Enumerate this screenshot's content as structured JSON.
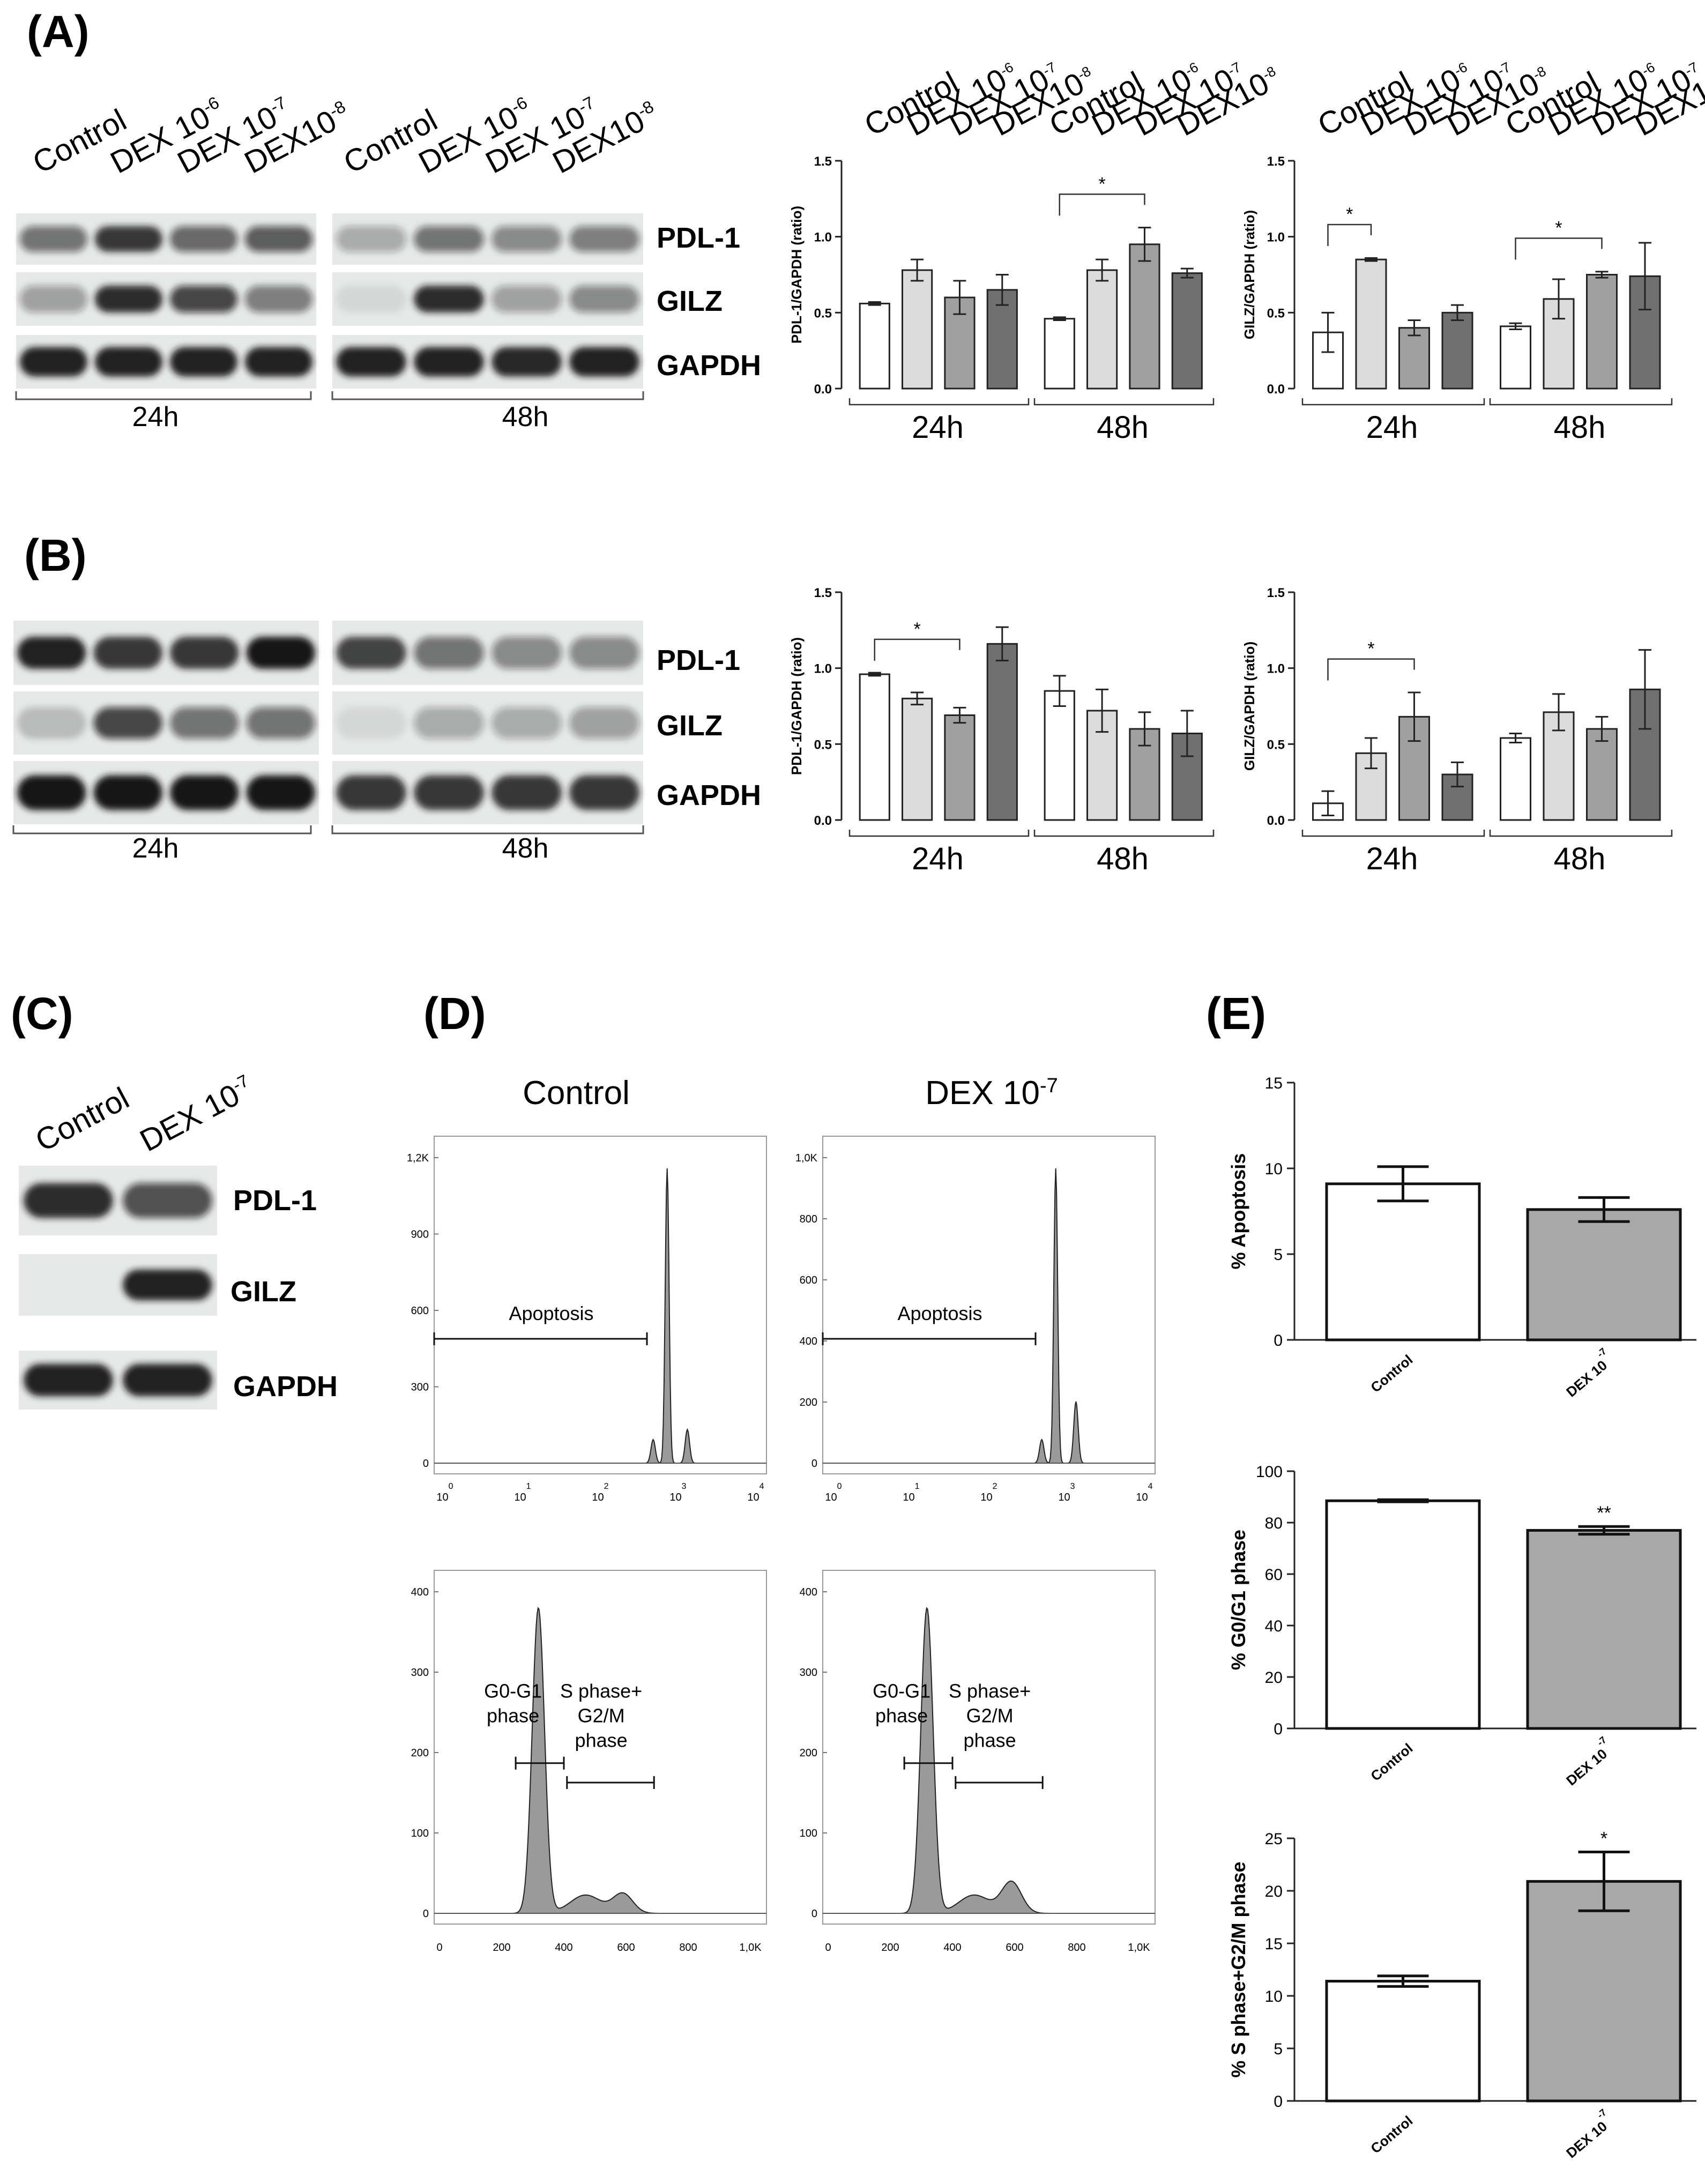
{
  "panels": {
    "A": "(A)",
    "B": "(B)",
    "C": "(C)",
    "D": "(D)",
    "E": "(E)"
  },
  "western": {
    "lanes": [
      {
        "base": "Control",
        "exp": ""
      },
      {
        "base": "DEX 10",
        "exp": "-6"
      },
      {
        "base": "DEX 10",
        "exp": "-7"
      },
      {
        "base": "DEX10",
        "exp": "-8"
      }
    ],
    "lanes_c": [
      {
        "base": "Control",
        "exp": ""
      },
      {
        "base": "DEX 10",
        "exp": "-7"
      }
    ],
    "proteins": [
      "PDL-1",
      "GILZ",
      "GAPDH"
    ],
    "times": [
      "24h",
      "48h"
    ]
  },
  "chart_data": [
    {
      "id": "A-PDL1",
      "type": "bar",
      "ylabel": "PDL-1/GAPDH (ratio)",
      "ylim": [
        0,
        1.5
      ],
      "yticks": [
        "0.0",
        "0.5",
        "1.0",
        "1.5"
      ],
      "groups": [
        "24h",
        "48h"
      ],
      "categories": [
        "Control",
        "DEX 10-6",
        "DEX 10-7",
        "DEX10-8"
      ],
      "values": [
        [
          0.56,
          0.78,
          0.6,
          0.65
        ],
        [
          0.46,
          0.78,
          0.95,
          0.76
        ]
      ],
      "errors": [
        [
          0.01,
          0.07,
          0.11,
          0.1
        ],
        [
          0.01,
          0.07,
          0.11,
          0.03
        ]
      ],
      "significance": [
        {
          "group": 1,
          "from": 0,
          "to": 2,
          "label": "*"
        }
      ]
    },
    {
      "id": "A-GILZ",
      "type": "bar",
      "ylabel": "GILZ/GAPDH (ratio)",
      "ylim": [
        0,
        1.5
      ],
      "yticks": [
        "0.0",
        "0.5",
        "1.0",
        "1.5"
      ],
      "groups": [
        "24h",
        "48h"
      ],
      "categories": [
        "Control",
        "DEX 10-6",
        "DEX 10-7",
        "DEX10-8"
      ],
      "values": [
        [
          0.37,
          0.85,
          0.4,
          0.5
        ],
        [
          0.41,
          0.59,
          0.75,
          0.74
        ]
      ],
      "errors": [
        [
          0.13,
          0.01,
          0.05,
          0.05
        ],
        [
          0.02,
          0.13,
          0.02,
          0.22
        ]
      ],
      "significance": [
        {
          "group": 0,
          "from": 0,
          "to": 1,
          "label": "*"
        },
        {
          "group": 1,
          "from": 0,
          "to": 2,
          "label": "*"
        }
      ]
    },
    {
      "id": "B-PDL1",
      "type": "bar",
      "ylabel": "PDL-1/GAPDH (ratio)",
      "ylim": [
        0,
        1.5
      ],
      "yticks": [
        "0.0",
        "0.5",
        "1.0",
        "1.5"
      ],
      "groups": [
        "24h",
        "48h"
      ],
      "categories": [
        "Control",
        "DEX 10-6",
        "DEX 10-7",
        "DEX10-8"
      ],
      "values": [
        [
          0.96,
          0.8,
          0.69,
          1.16
        ],
        [
          0.85,
          0.72,
          0.6,
          0.57
        ]
      ],
      "errors": [
        [
          0.01,
          0.04,
          0.05,
          0.11
        ],
        [
          0.1,
          0.14,
          0.11,
          0.15
        ]
      ],
      "significance": [
        {
          "group": 0,
          "from": 0,
          "to": 2,
          "label": "*"
        }
      ]
    },
    {
      "id": "B-GILZ",
      "type": "bar",
      "ylabel": "GILZ/GAPDH (ratio)",
      "ylim": [
        0,
        1.5
      ],
      "yticks": [
        "0.0",
        "0.5",
        "1.0",
        "1.5"
      ],
      "groups": [
        "24h",
        "48h"
      ],
      "categories": [
        "Control",
        "DEX 10-6",
        "DEX 10-7",
        "DEX10-8"
      ],
      "values": [
        [
          0.11,
          0.44,
          0.68,
          0.3
        ],
        [
          0.54,
          0.71,
          0.6,
          0.86
        ]
      ],
      "errors": [
        [
          0.08,
          0.1,
          0.16,
          0.08
        ],
        [
          0.03,
          0.12,
          0.08,
          0.26
        ]
      ],
      "significance": [
        {
          "group": 0,
          "from": 0,
          "to": 2,
          "label": "*"
        }
      ]
    },
    {
      "id": "E-apoptosis",
      "type": "bar",
      "ylabel": "% Apoptosis",
      "ylim": [
        0,
        15
      ],
      "yticks": [
        "0",
        "5",
        "10",
        "15"
      ],
      "categories": [
        "Control",
        "DEX 10-7"
      ],
      "values": [
        9.1,
        7.6
      ],
      "errors": [
        1.0,
        0.7
      ],
      "significance": []
    },
    {
      "id": "E-G0G1",
      "type": "bar",
      "ylabel": "% G0/G1 phase",
      "ylim": [
        0,
        100
      ],
      "yticks": [
        "0",
        "20",
        "40",
        "60",
        "80",
        "100"
      ],
      "categories": [
        "Control",
        "DEX 10-7"
      ],
      "values": [
        88.5,
        77.0
      ],
      "errors": [
        0.4,
        1.5
      ],
      "significance": [
        {
          "index": 1,
          "label": "**"
        }
      ]
    },
    {
      "id": "E-SG2M",
      "type": "bar",
      "ylabel": "% S phase+G2/M phase",
      "ylim": [
        0,
        25
      ],
      "yticks": [
        "0",
        "5",
        "10",
        "15",
        "20",
        "25"
      ],
      "categories": [
        "Control",
        "DEX 10-7"
      ],
      "values": [
        11.4,
        20.9
      ],
      "errors": [
        0.5,
        2.8
      ],
      "significance": [
        {
          "index": 1,
          "label": "*"
        }
      ]
    }
  ],
  "flow": {
    "titles": [
      {
        "base": "Control",
        "exp": ""
      },
      {
        "base": "DEX 10",
        "exp": "-7"
      }
    ],
    "top_yticks_left": [
      "0",
      "300",
      "600",
      "900",
      "1,2K"
    ],
    "top_yticks_right": [
      "0",
      "200",
      "400",
      "600",
      "800",
      "1,0K"
    ],
    "top_xticks": [
      {
        "base": "10",
        "exp": "0"
      },
      {
        "base": "10",
        "exp": "1"
      },
      {
        "base": "10",
        "exp": "2"
      },
      {
        "base": "10",
        "exp": "3"
      },
      {
        "base": "10",
        "exp": "4"
      }
    ],
    "bottom_yticks": [
      "0",
      "100",
      "200",
      "300",
      "400"
    ],
    "bottom_xticks": [
      "0",
      "200",
      "400",
      "600",
      "800",
      "1,0K"
    ],
    "apoptosis_label": "Apoptosis",
    "g0g1_label": [
      "G0-G1",
      "phase"
    ],
    "sg2m_label": [
      "S phase+",
      "G2/M",
      "phase"
    ]
  }
}
